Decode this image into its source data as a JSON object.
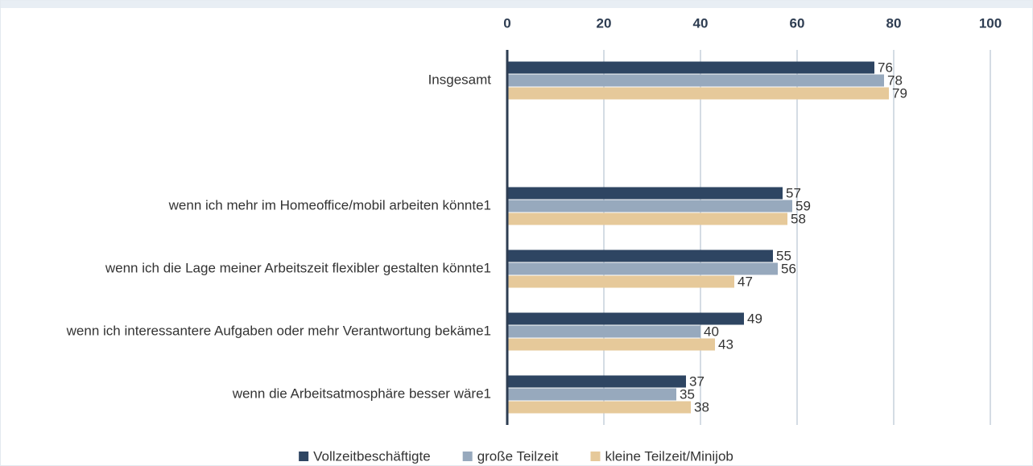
{
  "chart_data": {
    "type": "hbar",
    "categories": [
      "Insgesamt",
      null,
      "wenn ich mehr im Homeoffice/mobil arbeiten könnte1",
      "wenn ich die Lage meiner Arbeitszeit flexibler gestalten könnte1",
      "wenn ich interessantere Aufgaben oder mehr Verantwortung bekäme1",
      "wenn die Arbeitsatmosphäre besser wäre1"
    ],
    "series": [
      {
        "name": "Vollzeitbeschäftigte",
        "color": "#2e4562",
        "values": [
          76,
          null,
          57,
          55,
          49,
          37
        ]
      },
      {
        "name": "große Teilzeit",
        "color": "#97a9bd",
        "values": [
          78,
          null,
          59,
          56,
          40,
          35
        ]
      },
      {
        "name": "kleine Teilzeit/Minijob",
        "color": "#e6c99a",
        "values": [
          79,
          null,
          58,
          47,
          43,
          38
        ]
      }
    ],
    "xlim": [
      0,
      100
    ],
    "xticks": [
      0,
      20,
      40,
      60,
      80,
      100
    ],
    "grid": true,
    "legend": "bottom"
  }
}
